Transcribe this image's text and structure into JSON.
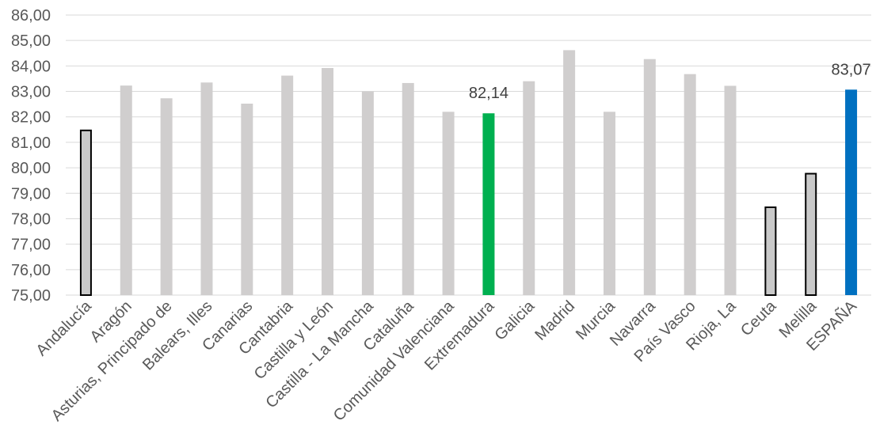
{
  "chart_data": {
    "type": "bar",
    "categories": [
      "Andalucía",
      "Aragón",
      "Asturias, Principado de",
      "Balears, Illes",
      "Canarias",
      "Cantabria",
      "Castilla y León",
      "Castilla - La Mancha",
      "Cataluña",
      "Comunidad Valenciana",
      "Extremadura",
      "Galicia",
      "Madrid",
      "Murcia",
      "Navarra",
      "País Vasco",
      "Rioja, La",
      "Ceuta",
      "Melilla",
      "ESPAÑA"
    ],
    "values": [
      81.5,
      83.23,
      82.73,
      83.35,
      82.52,
      83.62,
      83.92,
      83.0,
      83.33,
      82.2,
      82.14,
      83.4,
      84.62,
      82.2,
      84.27,
      83.68,
      83.22,
      78.48,
      79.8,
      83.07
    ],
    "bar_colors": [
      "#c9c9c9",
      "#d0cece",
      "#d0cece",
      "#d0cece",
      "#d0cece",
      "#d0cece",
      "#d0cece",
      "#d0cece",
      "#d0cece",
      "#d0cece",
      "#00b050",
      "#d0cece",
      "#d0cece",
      "#d0cece",
      "#d0cece",
      "#d0cece",
      "#d0cece",
      "#c9c9c9",
      "#c9c9c9",
      "#0070c0"
    ],
    "bar_outlined": [
      true,
      false,
      false,
      false,
      false,
      false,
      false,
      false,
      false,
      false,
      false,
      false,
      false,
      false,
      false,
      false,
      false,
      true,
      true,
      false
    ],
    "data_labels": [
      {
        "index": 10,
        "text": "82,14"
      },
      {
        "index": 19,
        "text": "83,07"
      }
    ],
    "y_ticks": [
      "75,00",
      "76,00",
      "77,00",
      "78,00",
      "79,00",
      "80,00",
      "81,00",
      "82,00",
      "83,00",
      "84,00",
      "85,00",
      "86,00"
    ],
    "ylim": [
      75,
      86
    ],
    "grid": true,
    "title": "",
    "xlabel": "",
    "ylabel": ""
  }
}
